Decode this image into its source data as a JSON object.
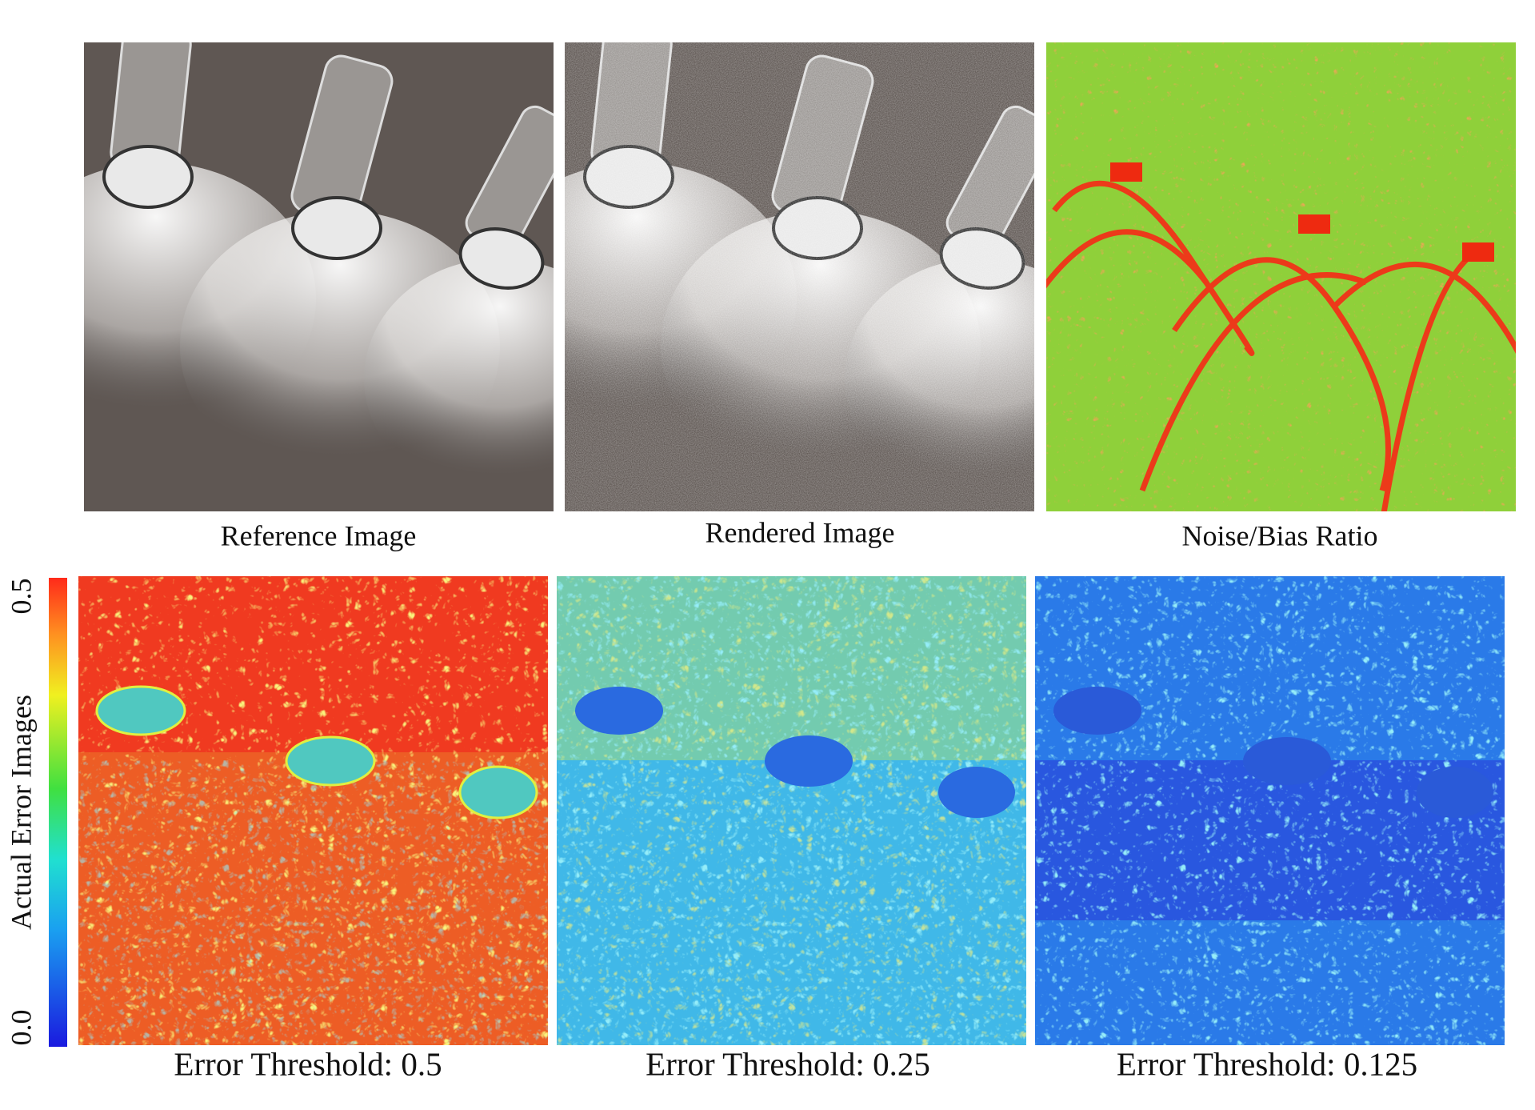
{
  "panels": [
    {
      "caption": "Reference Image"
    },
    {
      "caption": "Rendered Image"
    },
    {
      "caption": "Noise/Bias Ratio"
    },
    {
      "caption": "Error Threshold: 0.5"
    },
    {
      "caption": "Error Threshold: 0.25"
    },
    {
      "caption": "Error Threshold: 0.125"
    }
  ],
  "colorbar": {
    "label": "Actual Error Images",
    "ticks": [
      "0.0",
      "0.5"
    ]
  }
}
